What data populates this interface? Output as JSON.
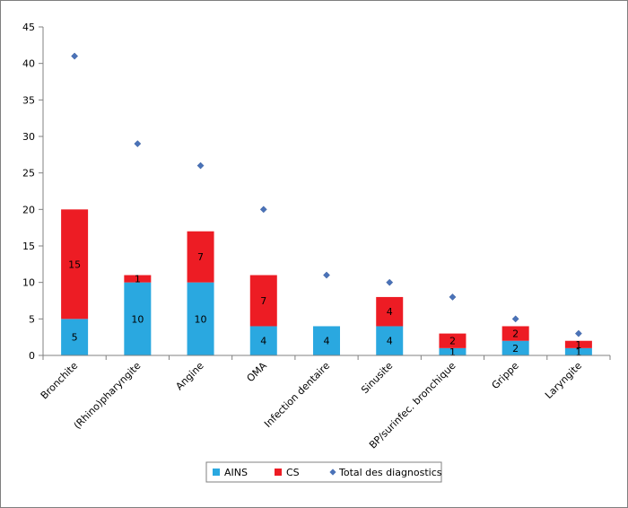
{
  "chart_data": {
    "type": "bar",
    "stacked": true,
    "categories": [
      "Bronchite",
      "(Rhino)pharyngite",
      "Angine",
      "OMA",
      "Infection dentaire",
      "Sinusite",
      "BP/surinfec. bronchique",
      "Grippe",
      "Laryngite"
    ],
    "series": [
      {
        "name": "AINS",
        "kind": "bar",
        "color": "#2aa8e0",
        "values": [
          5,
          10,
          10,
          4,
          4,
          4,
          1,
          2,
          1
        ],
        "labels": [
          "5",
          "10",
          "10",
          "4",
          "4",
          "4",
          "1",
          "2",
          "1"
        ]
      },
      {
        "name": "CS",
        "kind": "bar",
        "color": "#ed1c24",
        "values": [
          15,
          1,
          7,
          7,
          0,
          4,
          2,
          2,
          1
        ],
        "labels": [
          "15",
          "1",
          "7",
          "7",
          "",
          "4",
          "2",
          "2",
          "1"
        ]
      },
      {
        "name": "Total des diagnostics",
        "kind": "marker",
        "color": "#4a72b8",
        "values": [
          41,
          29,
          26,
          20,
          11,
          10,
          8,
          5,
          3
        ]
      }
    ],
    "yticks": [
      "0",
      "5",
      "10",
      "15",
      "20",
      "25",
      "30",
      "35",
      "40",
      "45"
    ],
    "ylim": [
      0,
      45
    ],
    "grid": false,
    "legend_position": "bottom"
  }
}
